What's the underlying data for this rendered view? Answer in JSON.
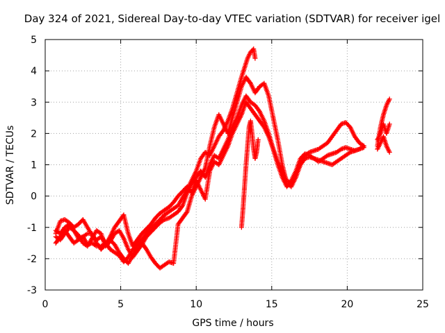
{
  "chart_data": {
    "type": "scatter",
    "title": "Day 324 of 2021, Sidereal Day-to-day VTEC variation (SDTVAR) for receiver igel",
    "xlabel": "GPS time / hours",
    "ylabel": "SDTVAR / TECUs",
    "xlim": [
      0,
      25
    ],
    "ylim": [
      -3,
      5
    ],
    "x_ticks": [
      0,
      5,
      10,
      15,
      20,
      25
    ],
    "y_ticks": [
      -3,
      -2,
      -1,
      0,
      1,
      2,
      3,
      4,
      5
    ],
    "grid": true,
    "marker": "+",
    "color": "#ff0000",
    "series": [
      {
        "x": [
          0.7,
          1.0,
          1.3,
          1.6,
          1.9,
          2.2,
          2.5,
          2.8,
          3.1,
          3.4,
          3.7,
          4.0,
          4.3,
          4.6,
          4.9,
          5.2,
          5.5,
          5.8,
          6.1,
          6.4,
          6.7,
          7.0,
          7.3,
          7.6,
          7.9,
          8.2,
          8.5,
          8.8,
          9.1,
          9.4,
          9.7,
          10.0,
          10.3,
          10.6,
          10.9,
          11.2,
          11.5,
          11.8,
          12.1,
          12.4,
          12.7,
          13.0,
          13.2,
          13.4,
          13.6,
          13.8,
          13.9
        ],
        "y": [
          -1.2,
          -0.8,
          -0.75,
          -0.85,
          -1.0,
          -0.9,
          -0.75,
          -1.0,
          -1.25,
          -1.4,
          -1.3,
          -1.5,
          -1.7,
          -1.8,
          -1.9,
          -2.1,
          -1.95,
          -1.7,
          -1.55,
          -1.4,
          -1.2,
          -1.05,
          -0.9,
          -0.75,
          -0.6,
          -0.5,
          -0.4,
          -0.3,
          -0.05,
          0.2,
          0.5,
          0.8,
          1.2,
          1.4,
          1.3,
          1.6,
          1.9,
          2.1,
          2.4,
          2.8,
          3.3,
          3.8,
          4.1,
          4.4,
          4.6,
          4.7,
          4.4
        ]
      },
      {
        "x": [
          0.7,
          1.0,
          1.3,
          1.6,
          1.9,
          2.2,
          2.5,
          2.8,
          3.1,
          3.4,
          3.7,
          4.0,
          4.3,
          4.6,
          4.9,
          5.2,
          5.5,
          5.8,
          6.1,
          6.4,
          6.7,
          7.0,
          7.3,
          7.6,
          7.9,
          8.2,
          8.5,
          8.8,
          9.1,
          9.4,
          9.7,
          10.0,
          10.3,
          10.6,
          10.9,
          11.2,
          11.5,
          11.8,
          12.1,
          12.4,
          12.7,
          13.0,
          13.3,
          13.6,
          13.9,
          14.2,
          14.5,
          14.8,
          15.1,
          15.4,
          15.7,
          16.0,
          16.3,
          16.6,
          16.9,
          17.2,
          17.5,
          17.8,
          18.1,
          18.4,
          18.7,
          19.0,
          19.3,
          19.6,
          19.9,
          20.2,
          20.5,
          20.8,
          21.1
        ],
        "y": [
          -1.5,
          -1.3,
          -1.1,
          -1.3,
          -1.5,
          -1.4,
          -1.3,
          -1.55,
          -1.5,
          -1.6,
          -1.6,
          -1.5,
          -1.4,
          -1.55,
          -1.8,
          -2.0,
          -2.15,
          -1.9,
          -1.6,
          -1.5,
          -1.7,
          -1.95,
          -2.15,
          -2.3,
          -2.2,
          -2.1,
          -2.15,
          -0.9,
          -0.7,
          -0.5,
          0.0,
          0.3,
          0.6,
          0.9,
          1.6,
          2.2,
          2.6,
          2.3,
          2.0,
          2.5,
          3.0,
          3.5,
          3.8,
          3.6,
          3.3,
          3.5,
          3.6,
          3.2,
          2.5,
          1.8,
          1.0,
          0.4,
          0.3,
          0.6,
          1.0,
          1.3,
          1.4,
          1.45,
          1.5,
          1.6,
          1.7,
          1.9,
          2.1,
          2.3,
          2.35,
          2.2,
          1.9,
          1.7,
          1.6
        ]
      },
      {
        "x": [
          0.7,
          1.0,
          1.3,
          1.6,
          1.9,
          2.2,
          2.5,
          2.8,
          3.1,
          3.4,
          3.7,
          4.0,
          4.3,
          4.6,
          4.9,
          5.2,
          5.5,
          5.8,
          6.1,
          6.4,
          6.7,
          7.0,
          7.3,
          7.6,
          7.9,
          8.2,
          8.5,
          8.8,
          9.1,
          9.4,
          9.7,
          10.0,
          10.3,
          10.6,
          10.9,
          11.2,
          11.5,
          11.8,
          12.1,
          12.4,
          12.7,
          13.0,
          13.3,
          13.6,
          13.9,
          14.2,
          14.5,
          14.8,
          15.1,
          15.4,
          15.7,
          16.0,
          16.3,
          16.6,
          16.9,
          17.2,
          17.5,
          17.8,
          18.1,
          18.4,
          18.7,
          19.0,
          19.3,
          19.6,
          19.9,
          20.2,
          20.5,
          20.8,
          21.1
        ],
        "y": [
          -1.3,
          -1.4,
          -1.2,
          -1.0,
          -1.1,
          -1.25,
          -1.5,
          -1.6,
          -1.35,
          -1.1,
          -1.2,
          -1.6,
          -1.45,
          -1.2,
          -1.1,
          -1.35,
          -1.7,
          -1.95,
          -1.75,
          -1.55,
          -1.3,
          -1.15,
          -1.0,
          -0.85,
          -0.75,
          -0.7,
          -0.6,
          -0.5,
          -0.3,
          0.1,
          0.4,
          0.6,
          0.8,
          0.6,
          1.0,
          1.3,
          1.2,
          1.5,
          1.8,
          2.2,
          2.5,
          2.9,
          3.2,
          3.0,
          2.9,
          2.7,
          2.4,
          2.0,
          1.5,
          1.0,
          0.6,
          0.3,
          0.5,
          0.8,
          1.2,
          1.35,
          1.3,
          1.2,
          1.1,
          1.2,
          1.3,
          1.35,
          1.4,
          1.5,
          1.55,
          1.5,
          1.45,
          1.5,
          1.55
        ]
      },
      {
        "x": [
          0.7,
          1.0,
          1.3,
          1.6,
          1.9,
          2.2,
          2.5,
          2.8,
          3.1,
          3.4,
          3.7,
          4.0,
          4.3,
          4.6,
          4.9,
          5.2,
          5.5,
          5.8,
          6.1,
          6.4,
          6.7,
          7.0,
          7.3,
          7.6,
          7.9,
          8.2,
          8.5,
          8.8,
          9.1,
          9.4,
          9.7,
          10.0,
          10.3,
          10.6,
          10.9,
          11.2,
          11.5,
          11.8,
          12.1,
          12.4,
          12.7,
          13.0,
          13.3,
          13.6,
          13.9,
          14.2,
          14.5,
          14.8,
          15.1,
          15.4,
          15.7,
          16.0,
          16.3,
          16.6,
          16.9,
          17.2,
          17.5,
          17.8,
          18.1,
          18.4,
          18.7,
          19.0,
          19.3,
          19.6,
          19.9,
          20.2,
          20.5,
          20.8,
          21.1
        ],
        "y": [
          -1.1,
          -1.2,
          -1.0,
          -0.9,
          -1.1,
          -1.35,
          -1.3,
          -1.2,
          -1.2,
          -1.5,
          -1.7,
          -1.55,
          -1.3,
          -1.0,
          -0.8,
          -0.6,
          -1.2,
          -1.6,
          -1.4,
          -1.2,
          -1.05,
          -0.9,
          -0.7,
          -0.55,
          -0.45,
          -0.35,
          -0.2,
          0.0,
          0.15,
          0.3,
          0.1,
          0.5,
          0.2,
          -0.1,
          0.8,
          1.1,
          1.0,
          1.3,
          1.6,
          2.0,
          2.3,
          2.6,
          3.0,
          2.8,
          2.6,
          2.4,
          2.2,
          1.9,
          1.5,
          1.1,
          0.8,
          0.5,
          0.4,
          0.7,
          1.0,
          1.2,
          1.25,
          1.2,
          1.15,
          1.1,
          1.05,
          1.0,
          1.1,
          1.2,
          1.3,
          1.4,
          1.45,
          1.5,
          1.6
        ]
      },
      {
        "x": [
          13.0,
          13.1,
          13.2,
          13.3,
          13.4,
          13.5,
          13.6,
          13.7,
          13.8,
          13.9,
          14.0,
          14.1
        ],
        "y": [
          -1.0,
          -0.4,
          0.3,
          1.0,
          1.6,
          2.2,
          2.4,
          2.0,
          1.5,
          1.2,
          1.4,
          1.8
        ]
      },
      {
        "x": [
          22.0,
          22.2,
          22.4,
          22.6,
          22.8
        ],
        "y": [
          1.6,
          2.2,
          2.6,
          2.9,
          3.1
        ]
      },
      {
        "x": [
          22.0,
          22.2,
          22.4,
          22.6,
          22.8
        ],
        "y": [
          1.8,
          2.0,
          2.3,
          2.0,
          2.3
        ]
      },
      {
        "x": [
          22.0,
          22.2,
          22.4,
          22.6,
          22.8
        ],
        "y": [
          1.5,
          1.7,
          1.9,
          1.6,
          1.4
        ]
      }
    ]
  }
}
